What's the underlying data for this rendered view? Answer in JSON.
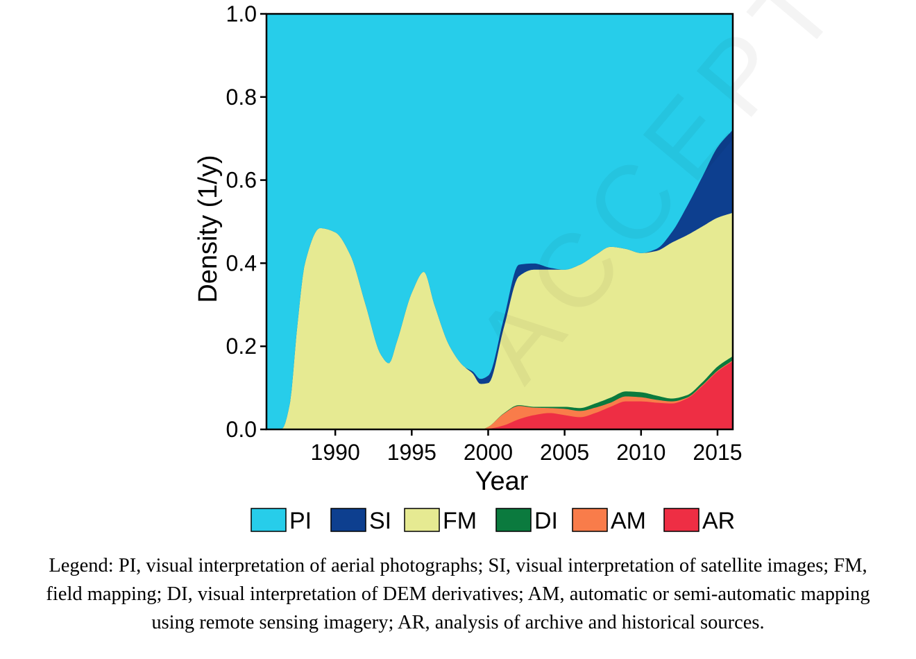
{
  "chart_data": {
    "type": "area",
    "stacked": true,
    "xlabel": "Year",
    "ylabel": "Density (1/y)",
    "xlim": [
      1985.5,
      2016.0
    ],
    "ylim": [
      0,
      1.0
    ],
    "xticks": [
      1990,
      1995,
      2000,
      2005,
      2010,
      2015
    ],
    "yticks": [
      "0.0",
      "0.2",
      "0.4",
      "0.6",
      "0.8",
      "1.0"
    ],
    "x": [
      1985.5,
      1986.5,
      1987.0,
      1987.5,
      1988.0,
      1989.0,
      1990.0,
      1991.0,
      1992.0,
      1993.0,
      1993.5,
      1994.0,
      1995.0,
      1995.8,
      1996.5,
      1997.5,
      1998.5,
      1999.0,
      1999.5,
      2000.0,
      2001.0,
      2002.0,
      2003.0,
      2004.0,
      2005.0,
      2006.0,
      2007.0,
      2008.0,
      2009.0,
      2010.0,
      2011.0,
      2012.0,
      2013.0,
      2014.0,
      2015.0,
      2016.0
    ],
    "series": [
      {
        "name": "AR",
        "color": "#EE2E44",
        "values": [
          0,
          0,
          0,
          0,
          0,
          0,
          0,
          0,
          0,
          0,
          0,
          0,
          0,
          0,
          0,
          0,
          0,
          0,
          0,
          0.002,
          0.01,
          0.025,
          0.035,
          0.04,
          0.035,
          0.03,
          0.04,
          0.055,
          0.068,
          0.068,
          0.065,
          0.063,
          0.075,
          0.105,
          0.14,
          0.165
        ]
      },
      {
        "name": "AM",
        "color": "#F97C4A",
        "values": [
          0,
          0,
          0,
          0,
          0,
          0,
          0,
          0,
          0,
          0,
          0,
          0,
          0,
          0,
          0,
          0,
          0,
          0,
          0,
          0.005,
          0.028,
          0.032,
          0.018,
          0.012,
          0.015,
          0.015,
          0.013,
          0.01,
          0.012,
          0.01,
          0.007,
          0.005,
          0.002,
          0.002,
          0.002,
          0.002
        ]
      },
      {
        "name": "DI",
        "color": "#0B7A3E",
        "values": [
          0,
          0,
          0,
          0,
          0,
          0,
          0,
          0,
          0,
          0,
          0,
          0,
          0,
          0,
          0,
          0,
          0,
          0,
          0,
          0,
          0.001,
          0.002,
          0.002,
          0.003,
          0.005,
          0.007,
          0.01,
          0.012,
          0.012,
          0.012,
          0.01,
          0.007,
          0.006,
          0.007,
          0.01,
          0.01
        ]
      },
      {
        "name": "FM",
        "color": "#E6EA92",
        "values": [
          0,
          0.002,
          0.06,
          0.25,
          0.4,
          0.485,
          0.475,
          0.42,
          0.3,
          0.18,
          0.16,
          0.21,
          0.33,
          0.38,
          0.3,
          0.2,
          0.15,
          0.135,
          0.11,
          0.105,
          0.205,
          0.31,
          0.33,
          0.33,
          0.33,
          0.345,
          0.357,
          0.363,
          0.343,
          0.335,
          0.348,
          0.375,
          0.385,
          0.375,
          0.358,
          0.345
        ]
      },
      {
        "name": "SI",
        "color": "#0D3F8F",
        "values": [
          0,
          0,
          0,
          0,
          0,
          0,
          0,
          0,
          0,
          0,
          0,
          0,
          0,
          0,
          0,
          0,
          0,
          0.005,
          0.012,
          0.018,
          0.022,
          0.028,
          0.015,
          0.005,
          0,
          0,
          0,
          0,
          0,
          0,
          0.005,
          0.025,
          0.07,
          0.12,
          0.17,
          0.2
        ]
      },
      {
        "name": "PI",
        "color": "#27CDEA",
        "fill_to_top": true,
        "values": [
          1,
          0.998,
          0.94,
          0.75,
          0.6,
          0.515,
          0.525,
          0.58,
          0.7,
          0.82,
          0.84,
          0.79,
          0.67,
          0.62,
          0.7,
          0.8,
          0.85,
          0.86,
          0.878,
          0.87,
          0.734,
          0.603,
          0.6,
          0.61,
          0.615,
          0.603,
          0.58,
          0.56,
          0.565,
          0.575,
          0.565,
          0.525,
          0.462,
          0.391,
          0.32,
          0.278
        ]
      }
    ],
    "legend": {
      "placement": "bottom",
      "order": [
        "PI",
        "SI",
        "FM",
        "DI",
        "AM",
        "AR"
      ]
    },
    "grid": false
  },
  "caption": {
    "line1": "Legend: PI, visual interpretation of aerial photographs; SI, visual interpretation of satellite images; FM,",
    "line2": "field mapping; DI, visual interpretation of DEM derivatives; AM, automatic or semi-automatic mapping",
    "line3": "using remote sensing imagery; AR, analysis of archive and historical sources."
  },
  "watermark": {
    "text": "ACCEPTED MANUSCRIPT"
  }
}
